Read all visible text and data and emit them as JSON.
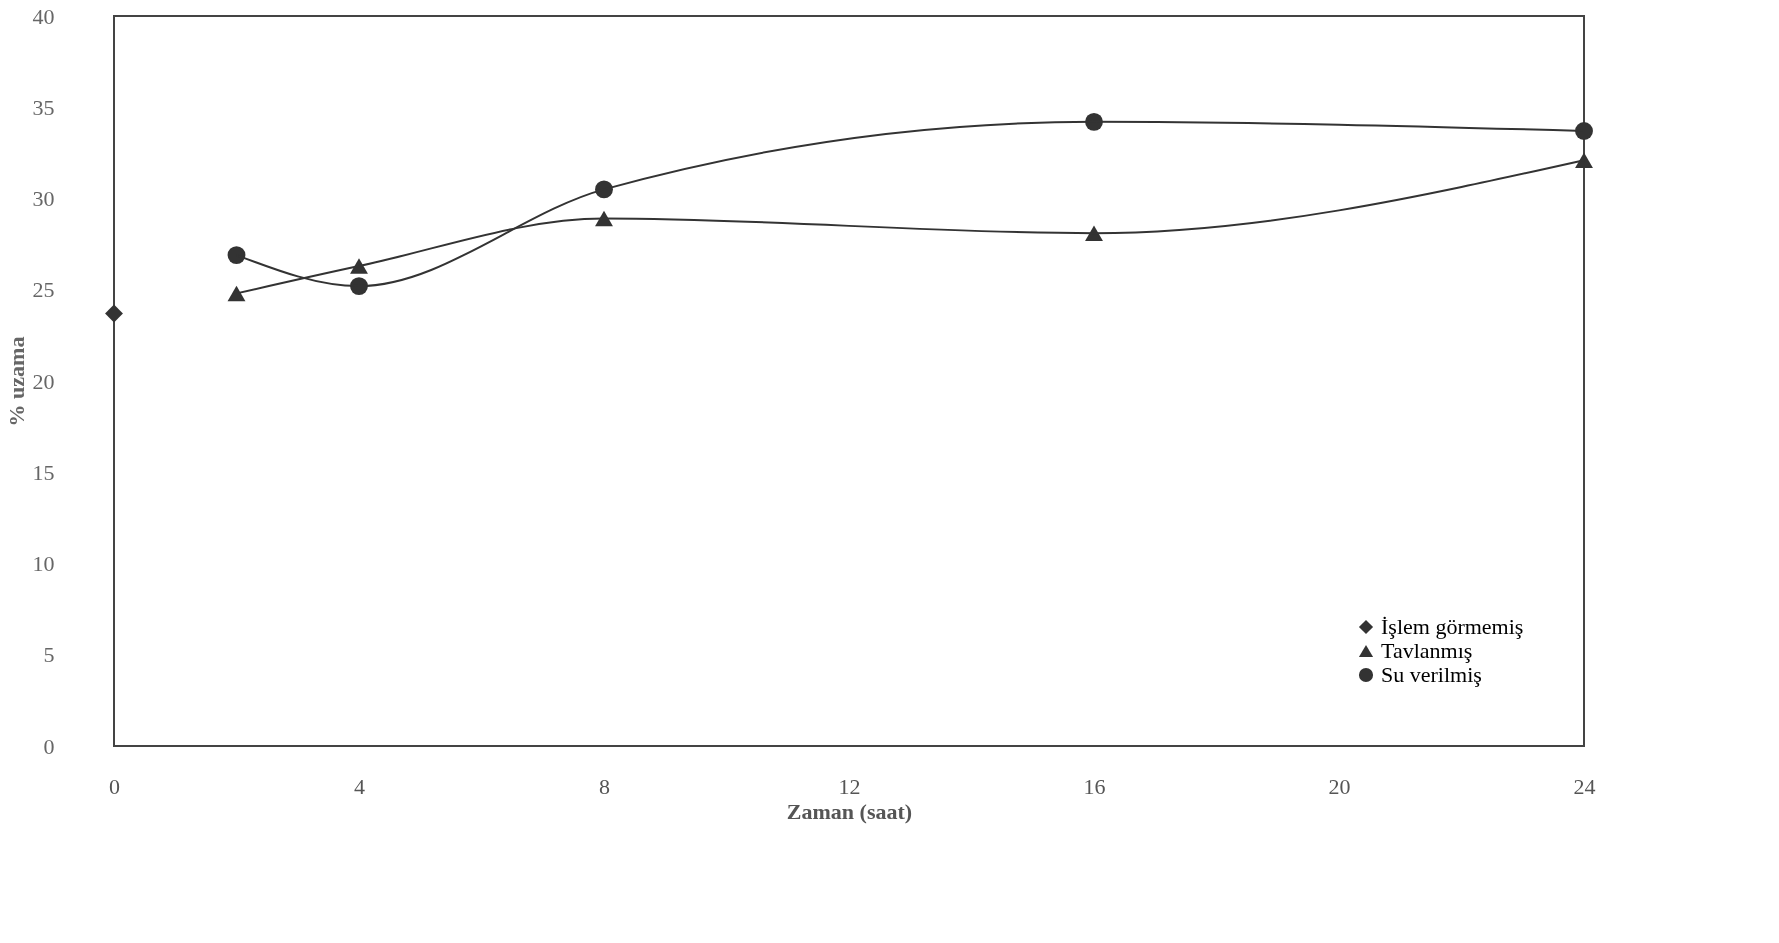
{
  "chart_data": {
    "type": "line",
    "xlabel": "Zaman (saat)",
    "ylabel": "% uzama",
    "xlim": [
      0,
      24
    ],
    "xticks": [
      0,
      4,
      8,
      12,
      16,
      20,
      24
    ],
    "ylim": [
      0,
      40
    ],
    "yticks": [
      0,
      5,
      10,
      15,
      20,
      25,
      30,
      35,
      40
    ],
    "grid": false,
    "legend": "bottom right",
    "series": [
      {
        "name": "İşlem görmemiş",
        "color": "#333333",
        "marker": "diamond",
        "line_style": "dashed",
        "x": [
          0
        ],
        "values": [
          23.7
        ]
      },
      {
        "name": "Tavlanmış",
        "color": "#333333",
        "marker": "triangle",
        "line_style": "solid",
        "x": [
          2,
          4,
          8,
          16,
          24
        ],
        "values": [
          24.8,
          26.3,
          28.9,
          28.1,
          32.1
        ]
      },
      {
        "name": "Su verilmiş",
        "color": "#333333",
        "marker": "circle",
        "line_style": "solid",
        "x": [
          2,
          4,
          8,
          16,
          24
        ],
        "values": [
          26.9,
          25.2,
          30.5,
          34.2,
          33.7
        ]
      }
    ]
  }
}
